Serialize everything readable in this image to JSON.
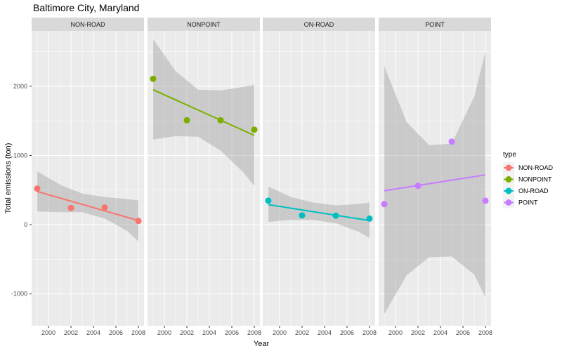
{
  "chart_data": {
    "type": "scatter",
    "title": "Baltimore City, Maryland",
    "xlabel": "Year",
    "ylabel": "Total emissions (ton)",
    "xlim": [
      1998.5,
      2008.5
    ],
    "ylim": [
      -1460,
      2800
    ],
    "x_ticks": [
      2000,
      2002,
      2004,
      2006,
      2008
    ],
    "y_ticks": [
      -1000,
      0,
      1000,
      2000
    ],
    "legend": {
      "title": "type",
      "position": "right"
    },
    "colors": {
      "panel_bg": "#ebebeb",
      "strip_bg": "#d9d9d9",
      "grid": "#ffffff",
      "ribbon": "#999999"
    },
    "panels": [
      {
        "label": "NON-ROAD",
        "color": "#F8766D",
        "points": [
          [
            1999,
            522
          ],
          [
            2002,
            242
          ],
          [
            2005,
            249
          ],
          [
            2008,
            55
          ]
        ],
        "fit": [
          [
            1999,
            480
          ],
          [
            2008,
            60
          ]
        ],
        "band": [
          {
            "x": 1999,
            "lo": 190,
            "hi": 770
          },
          {
            "x": 2001,
            "lo": 180,
            "hi": 580
          },
          {
            "x": 2003,
            "lo": 180,
            "hi": 450
          },
          {
            "x": 2005,
            "lo": 90,
            "hi": 400
          },
          {
            "x": 2007,
            "lo": -90,
            "hi": 370
          },
          {
            "x": 2008,
            "lo": -240,
            "hi": 350
          }
        ]
      },
      {
        "label": "NONPOINT",
        "color": "#7CAE00",
        "points": [
          [
            1999,
            2107
          ],
          [
            2002,
            1509
          ],
          [
            2005,
            1509
          ],
          [
            2008,
            1373
          ]
        ],
        "fit": [
          [
            1999,
            1950
          ],
          [
            2008,
            1290
          ]
        ],
        "band": [
          {
            "x": 1999,
            "lo": 1230,
            "hi": 2680
          },
          {
            "x": 2001,
            "lo": 1280,
            "hi": 2220
          },
          {
            "x": 2003,
            "lo": 1270,
            "hi": 1950
          },
          {
            "x": 2005,
            "lo": 1070,
            "hi": 1940
          },
          {
            "x": 2007,
            "lo": 760,
            "hi": 1990
          },
          {
            "x": 2008,
            "lo": 560,
            "hi": 2020
          }
        ]
      },
      {
        "label": "ON-ROAD",
        "color": "#00BFC4",
        "points": [
          [
            1999,
            347
          ],
          [
            2002,
            134
          ],
          [
            2005,
            130
          ],
          [
            2008,
            88
          ]
        ],
        "fit": [
          [
            1999,
            290
          ],
          [
            2008,
            60
          ]
        ],
        "band": [
          {
            "x": 1999,
            "lo": 40,
            "hi": 550
          },
          {
            "x": 2001,
            "lo": 70,
            "hi": 400
          },
          {
            "x": 2003,
            "lo": 70,
            "hi": 320
          },
          {
            "x": 2005,
            "lo": 20,
            "hi": 280
          },
          {
            "x": 2007,
            "lo": -100,
            "hi": 300
          },
          {
            "x": 2008,
            "lo": -190,
            "hi": 320
          }
        ]
      },
      {
        "label": "POINT",
        "color": "#C77CFF",
        "points": [
          [
            1999,
            297
          ],
          [
            2002,
            562
          ],
          [
            2005,
            1200
          ],
          [
            2008,
            345
          ]
        ],
        "fit": [
          [
            1999,
            490
          ],
          [
            2008,
            720
          ]
        ],
        "band": [
          {
            "x": 1999,
            "lo": -1290,
            "hi": 2290
          },
          {
            "x": 2001,
            "lo": -730,
            "hi": 1480
          },
          {
            "x": 2003,
            "lo": -470,
            "hi": 1150
          },
          {
            "x": 2005,
            "lo": -460,
            "hi": 1170
          },
          {
            "x": 2007,
            "lo": -720,
            "hi": 1850
          },
          {
            "x": 2008,
            "lo": -1050,
            "hi": 2500
          }
        ]
      }
    ]
  }
}
